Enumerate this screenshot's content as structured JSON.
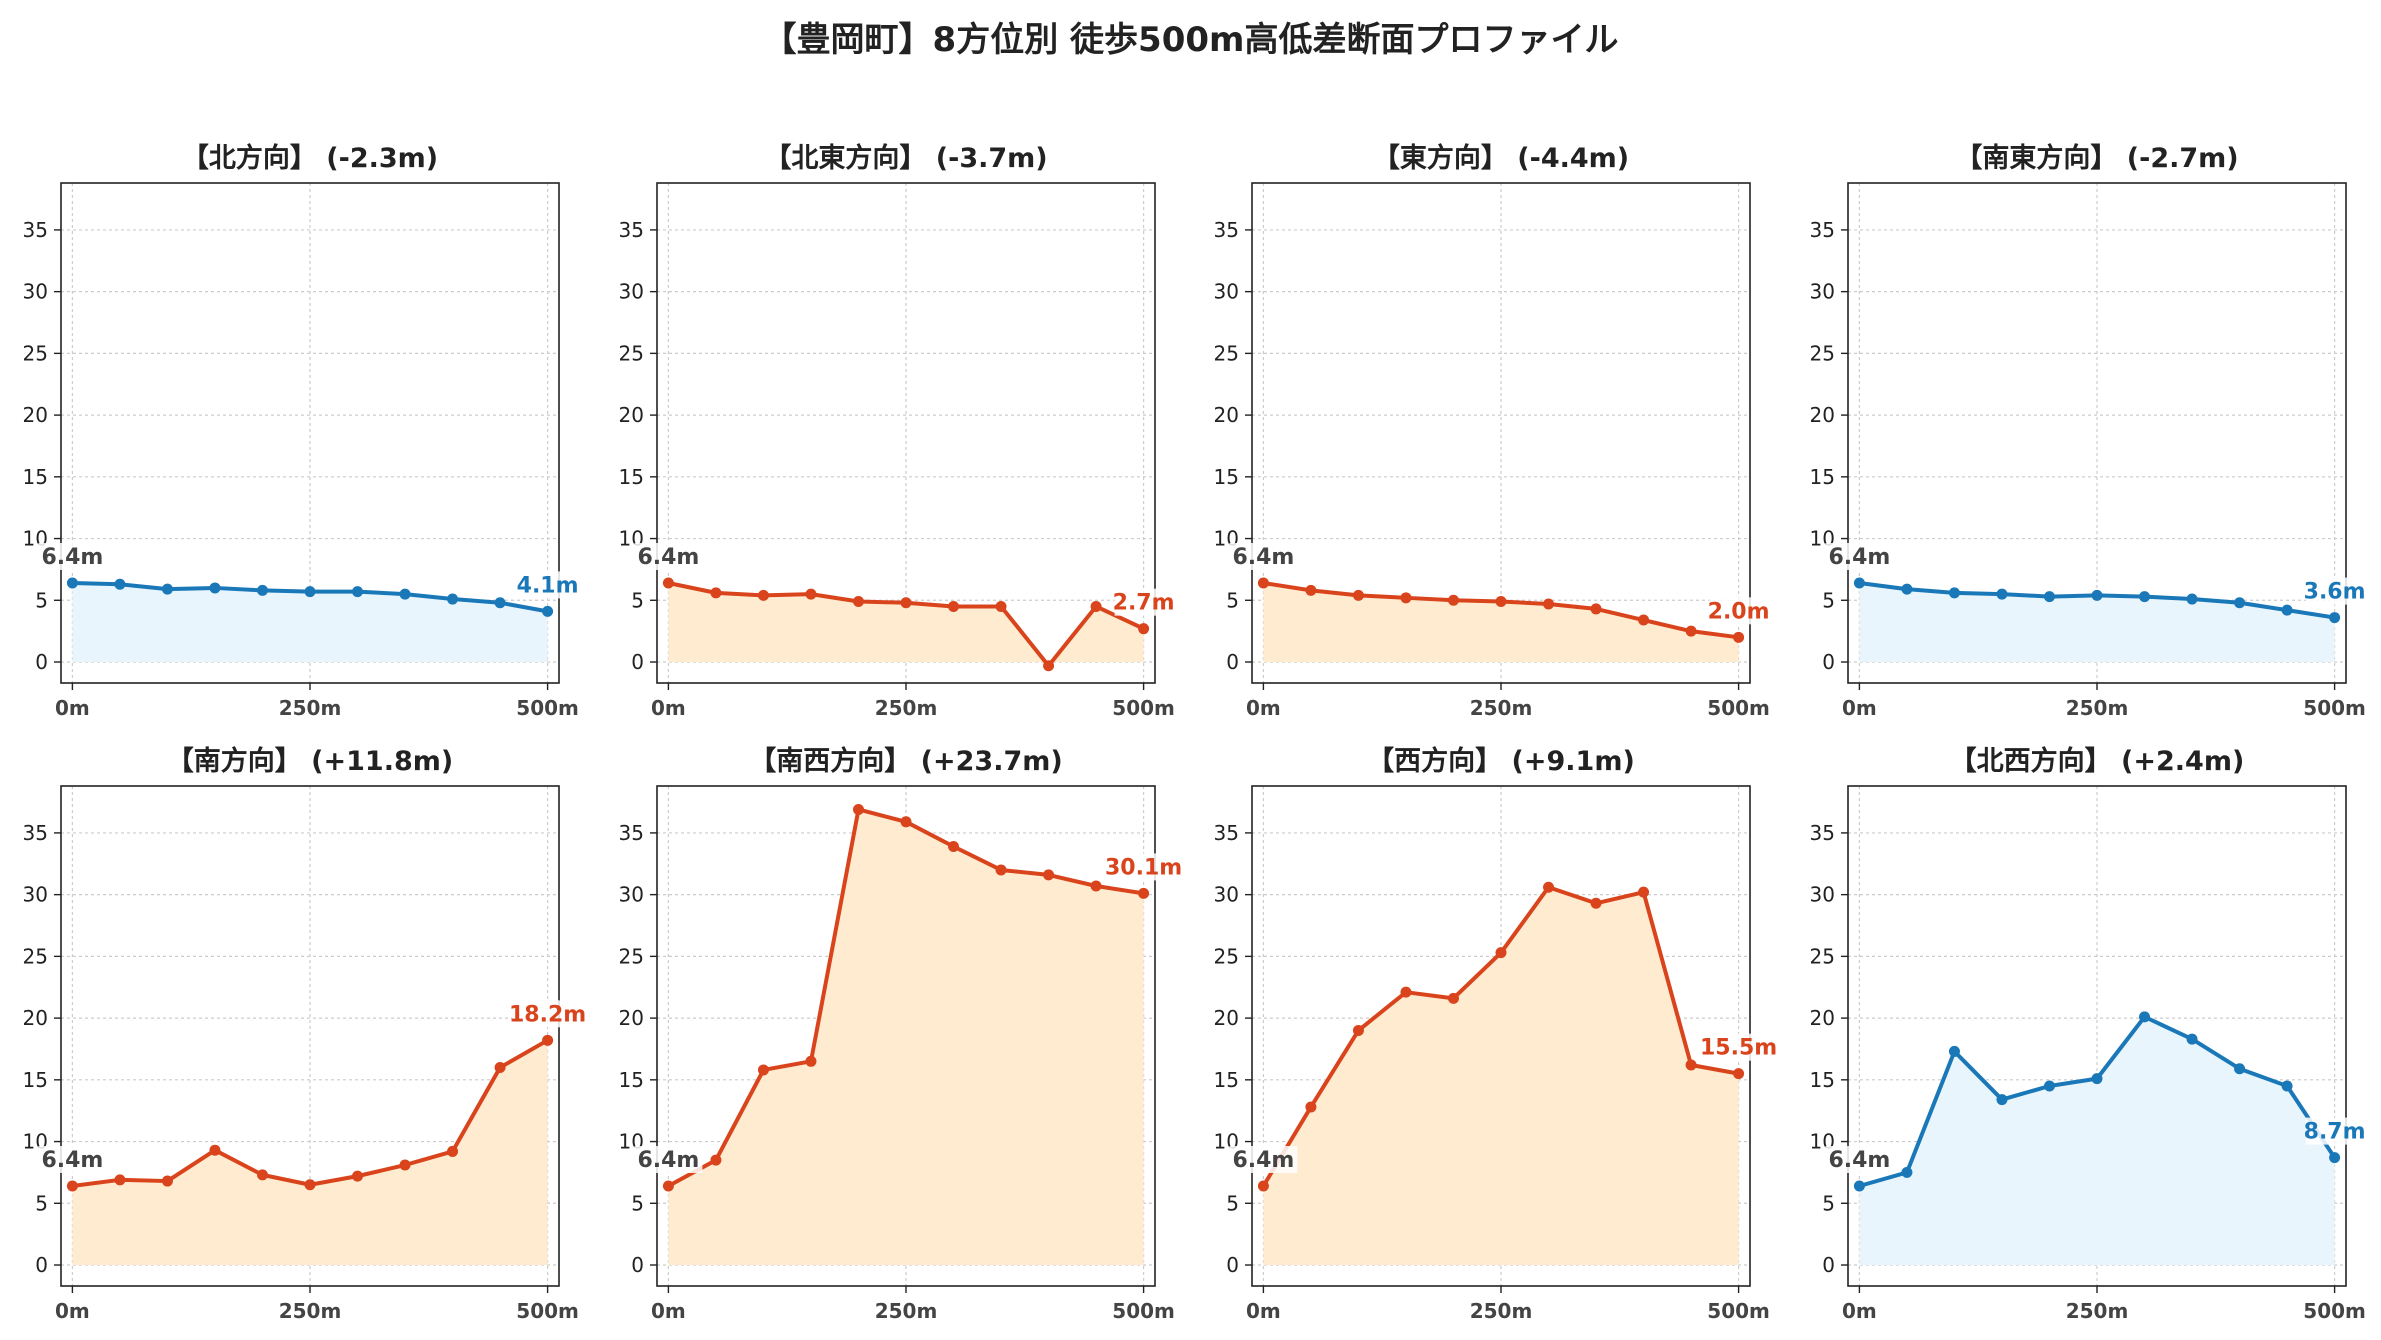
{
  "figure_title": "【豊岡町】8方位別 徒歩500m高低差断面プロファイル",
  "colors": {
    "down_line": "#1a78b8",
    "down_fill": "#e8f5fc",
    "up_line": "#d9441c",
    "up_fill": "#ffecd0",
    "start_label": "#444444"
  },
  "chart_data": [
    {
      "type": "area",
      "title": "【北方向】 (-2.3m)",
      "direction": "down",
      "x": [
        0,
        50,
        100,
        150,
        200,
        250,
        300,
        350,
        400,
        450,
        500
      ],
      "y": [
        6.4,
        6.3,
        5.9,
        6.0,
        5.8,
        5.7,
        5.7,
        5.5,
        5.1,
        4.8,
        4.1
      ],
      "xticks": [
        "0m",
        "250m",
        "500m"
      ],
      "yticks": [
        0,
        5,
        10,
        15,
        20,
        25,
        30,
        35
      ],
      "xlim": [
        -12,
        512
      ],
      "ylim": [
        -1.7,
        38.8
      ],
      "grid": true,
      "start_label": "6.4m",
      "end_label": "4.1m"
    },
    {
      "type": "area",
      "title": "【北東方向】 (-3.7m)",
      "direction": "up",
      "x": [
        0,
        50,
        100,
        150,
        200,
        250,
        300,
        350,
        400,
        450,
        500
      ],
      "y": [
        6.4,
        5.6,
        5.4,
        5.5,
        4.9,
        4.8,
        4.5,
        4.5,
        -0.3,
        4.5,
        2.7
      ],
      "xticks": [
        "0m",
        "250m",
        "500m"
      ],
      "yticks": [
        0,
        5,
        10,
        15,
        20,
        25,
        30,
        35
      ],
      "xlim": [
        -12,
        512
      ],
      "ylim": [
        -1.7,
        38.8
      ],
      "grid": true,
      "start_label": "6.4m",
      "end_label": "2.7m"
    },
    {
      "type": "area",
      "title": "【東方向】 (-4.4m)",
      "direction": "up",
      "x": [
        0,
        50,
        100,
        150,
        200,
        250,
        300,
        350,
        400,
        450,
        500
      ],
      "y": [
        6.4,
        5.8,
        5.4,
        5.2,
        5.0,
        4.9,
        4.7,
        4.3,
        3.4,
        2.5,
        2.0
      ],
      "xticks": [
        "0m",
        "250m",
        "500m"
      ],
      "yticks": [
        0,
        5,
        10,
        15,
        20,
        25,
        30,
        35
      ],
      "xlim": [
        -12,
        512
      ],
      "ylim": [
        -1.7,
        38.8
      ],
      "grid": true,
      "start_label": "6.4m",
      "end_label": "2.0m"
    },
    {
      "type": "area",
      "title": "【南東方向】 (-2.7m)",
      "direction": "down",
      "x": [
        0,
        50,
        100,
        150,
        200,
        250,
        300,
        350,
        400,
        450,
        500
      ],
      "y": [
        6.4,
        5.9,
        5.6,
        5.5,
        5.3,
        5.4,
        5.3,
        5.1,
        4.8,
        4.2,
        3.6
      ],
      "xticks": [
        "0m",
        "250m",
        "500m"
      ],
      "yticks": [
        0,
        5,
        10,
        15,
        20,
        25,
        30,
        35
      ],
      "xlim": [
        -12,
        512
      ],
      "ylim": [
        -1.7,
        38.8
      ],
      "grid": true,
      "start_label": "6.4m",
      "end_label": "3.6m"
    },
    {
      "type": "area",
      "title": "【南方向】 (+11.8m)",
      "direction": "up",
      "x": [
        0,
        50,
        100,
        150,
        200,
        250,
        300,
        350,
        400,
        450,
        500
      ],
      "y": [
        6.4,
        6.9,
        6.8,
        9.3,
        7.3,
        6.5,
        7.2,
        8.1,
        9.2,
        16.0,
        18.2
      ],
      "xticks": [
        "0m",
        "250m",
        "500m"
      ],
      "yticks": [
        0,
        5,
        10,
        15,
        20,
        25,
        30,
        35
      ],
      "xlim": [
        -12,
        512
      ],
      "ylim": [
        -1.7,
        38.8
      ],
      "grid": true,
      "start_label": "6.4m",
      "end_label": "18.2m"
    },
    {
      "type": "area",
      "title": "【南西方向】 (+23.7m)",
      "direction": "up",
      "x": [
        0,
        50,
        100,
        150,
        200,
        250,
        300,
        350,
        400,
        450,
        500
      ],
      "y": [
        6.4,
        8.5,
        15.8,
        16.5,
        36.9,
        35.9,
        33.9,
        32.0,
        31.6,
        30.7,
        30.1
      ],
      "xticks": [
        "0m",
        "250m",
        "500m"
      ],
      "yticks": [
        0,
        5,
        10,
        15,
        20,
        25,
        30,
        35
      ],
      "xlim": [
        -12,
        512
      ],
      "ylim": [
        -1.7,
        38.8
      ],
      "grid": true,
      "start_label": "6.4m",
      "end_label": "30.1m"
    },
    {
      "type": "area",
      "title": "【西方向】 (+9.1m)",
      "direction": "up",
      "x": [
        0,
        50,
        100,
        150,
        200,
        250,
        300,
        350,
        400,
        450,
        500
      ],
      "y": [
        6.4,
        12.8,
        19.0,
        22.1,
        21.6,
        25.3,
        30.6,
        29.3,
        30.2,
        16.2,
        15.5
      ],
      "xticks": [
        "0m",
        "250m",
        "500m"
      ],
      "yticks": [
        0,
        5,
        10,
        15,
        20,
        25,
        30,
        35
      ],
      "xlim": [
        -12,
        512
      ],
      "ylim": [
        -1.7,
        38.8
      ],
      "grid": true,
      "start_label": "6.4m",
      "end_label": "15.5m"
    },
    {
      "type": "area",
      "title": "【北西方向】 (+2.4m)",
      "direction": "down",
      "x": [
        0,
        50,
        100,
        150,
        200,
        250,
        300,
        350,
        400,
        450,
        500
      ],
      "y": [
        6.4,
        7.5,
        17.3,
        13.4,
        14.5,
        15.1,
        20.1,
        18.3,
        15.9,
        14.5,
        8.7
      ],
      "xticks": [
        "0m",
        "250m",
        "500m"
      ],
      "yticks": [
        0,
        5,
        10,
        15,
        20,
        25,
        30,
        35
      ],
      "xlim": [
        -12,
        512
      ],
      "ylim": [
        -1.7,
        38.8
      ],
      "grid": true,
      "start_label": "6.4m",
      "end_label": "8.7m"
    }
  ]
}
